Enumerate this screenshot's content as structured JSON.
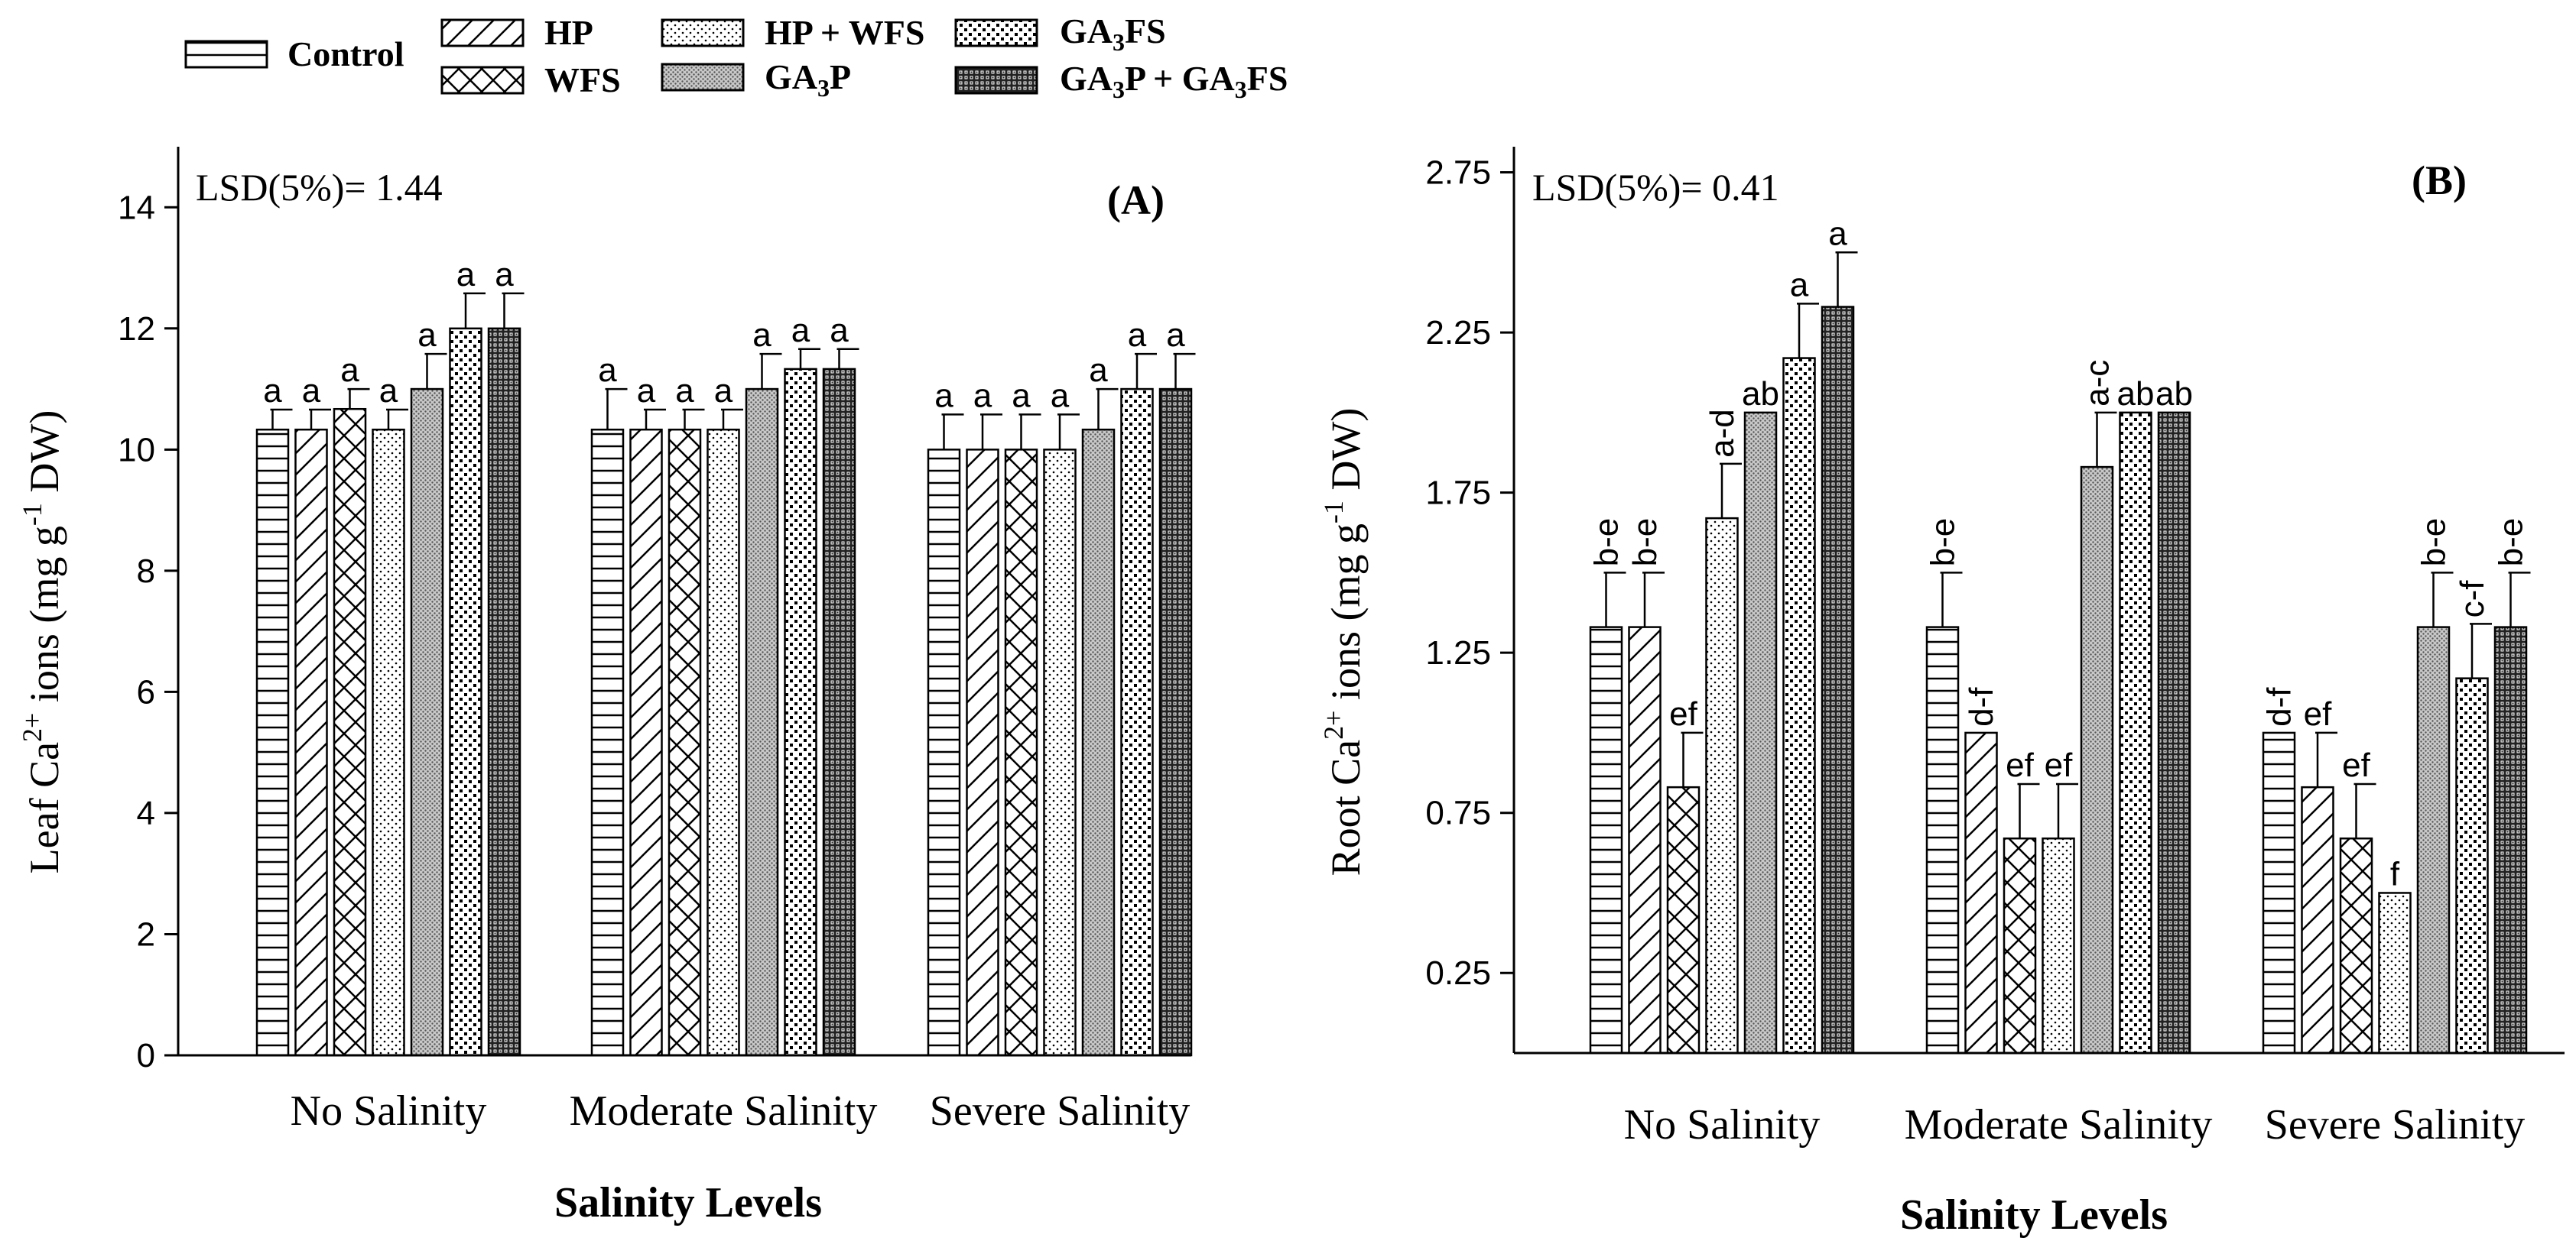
{
  "legend": [
    {
      "label": "Control",
      "pattern": "hlines"
    },
    {
      "label": "HP",
      "pattern": "diag"
    },
    {
      "label": "WFS",
      "pattern": "cross"
    },
    {
      "label": "HP + WFS",
      "pattern": "sparse-dots"
    },
    {
      "label": "GA3P",
      "pattern": "dense-gray"
    },
    {
      "label": "GA3FS",
      "pattern": "dots"
    },
    {
      "label": "GA3P + GA3FS",
      "pattern": "grid"
    }
  ],
  "chart_data": [
    {
      "type": "bar",
      "panel_label": "(A)",
      "lsd_text": "LSD(5%)= 1.44",
      "ylabel": "Leaf Ca2+ ions (mg g-1 DW)",
      "xlabel": "Salinity Levels",
      "ylim": [
        0,
        15
      ],
      "yticks": [
        0,
        2,
        4,
        6,
        8,
        10,
        12,
        14
      ],
      "ytick_labels": [
        "0",
        "2",
        "4",
        "6",
        "8",
        "10",
        "12",
        "14"
      ],
      "categories": [
        "No Salinity",
        "Moderate Salinity",
        "Severe Salinity"
      ],
      "series": [
        {
          "name": "Control",
          "values": [
            10.33,
            10.33,
            10.0
          ],
          "errors": [
            0.33,
            0.67,
            0.58
          ],
          "letters": [
            "a",
            "a",
            "a"
          ]
        },
        {
          "name": "HP",
          "values": [
            10.33,
            10.33,
            10.0
          ],
          "errors": [
            0.33,
            0.33,
            0.58
          ],
          "letters": [
            "a",
            "a",
            "a"
          ]
        },
        {
          "name": "WFS",
          "values": [
            10.67,
            10.33,
            10.0
          ],
          "errors": [
            0.33,
            0.33,
            0.58
          ],
          "letters": [
            "a",
            "a",
            "a"
          ]
        },
        {
          "name": "HP + WFS",
          "values": [
            10.33,
            10.33,
            10.0
          ],
          "errors": [
            0.33,
            0.33,
            0.58
          ],
          "letters": [
            "a",
            "a",
            "a"
          ]
        },
        {
          "name": "GA3P",
          "values": [
            11.0,
            11.0,
            10.33
          ],
          "errors": [
            0.58,
            0.58,
            0.67
          ],
          "letters": [
            "a",
            "a",
            "a"
          ]
        },
        {
          "name": "GA3FS",
          "values": [
            12.0,
            11.33,
            11.0
          ],
          "errors": [
            0.58,
            0.33,
            0.58
          ],
          "letters": [
            "a",
            "a",
            "a"
          ]
        },
        {
          "name": "GA3P + GA3FS",
          "values": [
            12.0,
            11.33,
            11.0
          ],
          "errors": [
            0.58,
            0.33,
            0.58
          ],
          "letters": [
            "a",
            "a",
            "a"
          ]
        }
      ]
    },
    {
      "type": "bar",
      "panel_label": "(B)",
      "lsd_text": "LSD(5%)= 0.41",
      "ylabel": "Root Ca2+ ions (mg g-1 DW)",
      "xlabel": "Salinity Levels",
      "ylim": [
        0,
        2.83
      ],
      "yticks": [
        0.25,
        0.75,
        1.25,
        1.75,
        2.25,
        2.75
      ],
      "ytick_labels": [
        "0.25",
        "0.75",
        "1.25",
        "1.75",
        "2.25",
        "2.75"
      ],
      "categories": [
        "No Salinity",
        "Moderate Salinity",
        "Severe Salinity"
      ],
      "series": [
        {
          "name": "Control",
          "values": [
            1.33,
            1.33,
            1.0
          ],
          "errors": [
            0.17,
            0.17,
            0.0
          ],
          "letters": [
            "b-e",
            "b-e",
            "d-f"
          ]
        },
        {
          "name": "HP",
          "values": [
            1.33,
            1.0,
            0.83
          ],
          "errors": [
            0.17,
            0.0,
            0.17
          ],
          "letters": [
            "b-e",
            "d-f",
            "ef"
          ]
        },
        {
          "name": "WFS",
          "values": [
            0.83,
            0.67,
            0.67
          ],
          "errors": [
            0.17,
            0.17,
            0.17
          ],
          "letters": [
            "ef",
            "ef",
            "ef"
          ]
        },
        {
          "name": "HP + WFS",
          "values": [
            1.67,
            0.67,
            0.5
          ],
          "errors": [
            0.17,
            0.17,
            0.0
          ],
          "letters": [
            "a-d",
            "ef",
            "f"
          ]
        },
        {
          "name": "GA3P",
          "values": [
            2.0,
            1.83,
            1.33
          ],
          "errors": [
            0.0,
            0.17,
            0.17
          ],
          "letters": [
            "ab",
            "a-c",
            "b-e"
          ]
        },
        {
          "name": "GA3FS",
          "values": [
            2.17,
            2.0,
            1.17
          ],
          "errors": [
            0.17,
            0.0,
            0.17
          ],
          "letters": [
            "a",
            "ab",
            "c-f"
          ]
        },
        {
          "name": "GA3P + GA3FS",
          "values": [
            2.33,
            2.0,
            1.33
          ],
          "errors": [
            0.17,
            0.0,
            0.17
          ],
          "letters": [
            "a",
            "ab",
            "b-e"
          ]
        }
      ]
    }
  ]
}
